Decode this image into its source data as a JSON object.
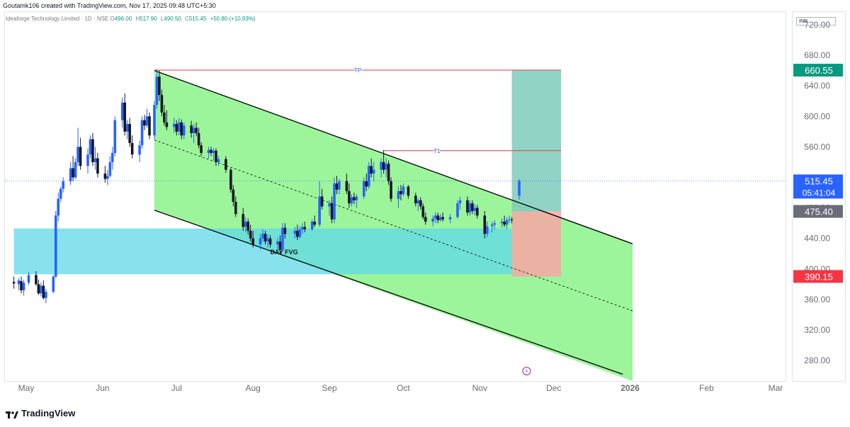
{
  "header": {
    "created_by": "Goutamk106 created with TradingView.com, Nov 17, 2025 09:48 UTC+5:30"
  },
  "symbol": {
    "name": "Ideaforge Technology Limited · 1D · NSE",
    "open_label": "O",
    "open": "496.00",
    "high_label": "H",
    "high": "517.90",
    "low_label": "L",
    "low": "490.50",
    "close_label": "C",
    "close": "515.45",
    "change": "+50.80 (+10.93%)"
  },
  "currency": "INR",
  "footer": {
    "brand": "TradingView"
  },
  "colors": {
    "up": "#2962ff",
    "down": "#131722",
    "channel_fill": "#9df59b",
    "fvg_fill": "#5fd8e8",
    "target_fill": "#7ecbbb",
    "stop_fill": "#f9a6a6",
    "tp_line": "#f23645",
    "price_badge": "#2962ff",
    "target_badge": "#089981",
    "stop_badge": "#f23645",
    "entry_badge": "#6a6d78"
  },
  "chart_data": {
    "type": "candlestick",
    "y_axis": {
      "min": 260,
      "max": 740,
      "ticks": [
        280,
        320,
        360,
        400,
        440,
        480,
        560,
        600,
        640,
        680,
        720
      ]
    },
    "x_axis": {
      "labels": [
        "May",
        "Jun",
        "Jul",
        "Aug",
        "Sep",
        "Oct",
        "Nov",
        "Dec",
        "2026",
        "Feb",
        "Mar"
      ],
      "label_dates": [
        "2025-05-01",
        "2025-06-01",
        "2025-07-01",
        "2025-08-01",
        "2025-09-01",
        "2025-10-01",
        "2025-11-01",
        "2025-12-01",
        "2026-01-01",
        "2026-02-01",
        "2026-03-01"
      ]
    },
    "price_labels": [
      {
        "text": "660.55",
        "value": 660.55,
        "role": "target"
      },
      {
        "text": "515.45",
        "value": 515.45,
        "role": "last",
        "sub": "05:41:04"
      },
      {
        "text": "475.40",
        "value": 475.4,
        "role": "entry"
      },
      {
        "text": "390.15",
        "value": 390.15,
        "role": "stop"
      }
    ],
    "last_price": 515.45,
    "horizontal_lines": [
      {
        "label": "TP",
        "value": 660.55,
        "from": "2025-06-22",
        "to": "2025-12-04"
      },
      {
        "label": "T1",
        "value": 555,
        "from": "2025-09-23",
        "to": "2025-12-04"
      }
    ],
    "zones": [
      {
        "label": "DAY FVG",
        "from": "2025-04-26",
        "to": "2025-11-14",
        "top": 453,
        "bottom": 393
      },
      {
        "label": "",
        "kind": "target",
        "from": "2025-11-14",
        "to": "2025-12-04",
        "top": 660.55,
        "bottom": 475.4
      },
      {
        "label": "",
        "kind": "stop",
        "from": "2025-11-14",
        "to": "2025-12-04",
        "top": 475.4,
        "bottom": 390.15
      }
    ],
    "channel": {
      "upper": [
        {
          "date": "2025-06-22",
          "value": 660
        },
        {
          "date": "2026-01-02",
          "value": 433
        }
      ],
      "lower": [
        {
          "date": "2025-06-22",
          "value": 477
        },
        {
          "date": "2025-12-29",
          "value": 262
        }
      ],
      "mid": [
        {
          "date": "2025-06-22",
          "value": 569
        },
        {
          "date": "2026-01-02",
          "value": 345
        }
      ],
      "fill_to": "2026-01-02"
    },
    "candles": [
      {
        "d": "2025-04-26",
        "o": 383,
        "h": 390,
        "l": 374,
        "c": 381
      },
      {
        "d": "2025-04-28",
        "o": 380,
        "h": 388,
        "l": 372,
        "c": 385
      },
      {
        "d": "2025-04-29",
        "o": 384,
        "h": 390,
        "l": 368,
        "c": 372
      },
      {
        "d": "2025-04-30",
        "o": 372,
        "h": 386,
        "l": 365,
        "c": 382
      },
      {
        "d": "2025-05-02",
        "o": 382,
        "h": 396,
        "l": 379,
        "c": 392
      },
      {
        "d": "2025-05-05",
        "o": 392,
        "h": 397,
        "l": 378,
        "c": 380
      },
      {
        "d": "2025-05-06",
        "o": 380,
        "h": 386,
        "l": 366,
        "c": 368
      },
      {
        "d": "2025-05-07",
        "o": 368,
        "h": 382,
        "l": 364,
        "c": 378
      },
      {
        "d": "2025-05-08",
        "o": 378,
        "h": 385,
        "l": 360,
        "c": 362
      },
      {
        "d": "2025-05-09",
        "o": 362,
        "h": 374,
        "l": 355,
        "c": 370
      },
      {
        "d": "2025-05-12",
        "o": 370,
        "h": 392,
        "l": 368,
        "c": 390
      },
      {
        "d": "2025-05-13",
        "o": 390,
        "h": 476,
        "l": 388,
        "c": 470
      },
      {
        "d": "2025-05-14",
        "o": 470,
        "h": 500,
        "l": 462,
        "c": 492
      },
      {
        "d": "2025-05-15",
        "o": 492,
        "h": 508,
        "l": 488,
        "c": 505
      },
      {
        "d": "2025-05-16",
        "o": 505,
        "h": 520,
        "l": 500,
        "c": 515
      },
      {
        "d": "2025-05-19",
        "o": 515,
        "h": 540,
        "l": 510,
        "c": 532
      },
      {
        "d": "2025-05-20",
        "o": 532,
        "h": 548,
        "l": 515,
        "c": 520
      },
      {
        "d": "2025-05-21",
        "o": 520,
        "h": 545,
        "l": 518,
        "c": 540
      },
      {
        "d": "2025-05-22",
        "o": 540,
        "h": 585,
        "l": 535,
        "c": 560
      },
      {
        "d": "2025-05-23",
        "o": 560,
        "h": 572,
        "l": 530,
        "c": 535
      },
      {
        "d": "2025-05-26",
        "o": 535,
        "h": 558,
        "l": 525,
        "c": 550
      },
      {
        "d": "2025-05-27",
        "o": 550,
        "h": 575,
        "l": 545,
        "c": 570
      },
      {
        "d": "2025-05-28",
        "o": 570,
        "h": 578,
        "l": 535,
        "c": 540
      },
      {
        "d": "2025-05-29",
        "o": 540,
        "h": 560,
        "l": 530,
        "c": 545
      },
      {
        "d": "2025-05-30",
        "o": 545,
        "h": 552,
        "l": 520,
        "c": 525
      },
      {
        "d": "2025-06-02",
        "o": 525,
        "h": 535,
        "l": 513,
        "c": 518
      },
      {
        "d": "2025-06-03",
        "o": 518,
        "h": 530,
        "l": 510,
        "c": 522
      },
      {
        "d": "2025-06-04",
        "o": 522,
        "h": 548,
        "l": 520,
        "c": 540
      },
      {
        "d": "2025-06-05",
        "o": 540,
        "h": 560,
        "l": 530,
        "c": 552
      },
      {
        "d": "2025-06-06",
        "o": 552,
        "h": 600,
        "l": 548,
        "c": 595
      },
      {
        "d": "2025-06-09",
        "o": 595,
        "h": 625,
        "l": 585,
        "c": 618
      },
      {
        "d": "2025-06-10",
        "o": 618,
        "h": 630,
        "l": 575,
        "c": 580
      },
      {
        "d": "2025-06-11",
        "o": 580,
        "h": 595,
        "l": 570,
        "c": 590
      },
      {
        "d": "2025-06-12",
        "o": 590,
        "h": 598,
        "l": 560,
        "c": 565
      },
      {
        "d": "2025-06-13",
        "o": 565,
        "h": 575,
        "l": 545,
        "c": 550
      },
      {
        "d": "2025-06-16",
        "o": 550,
        "h": 568,
        "l": 540,
        "c": 562
      },
      {
        "d": "2025-06-17",
        "o": 562,
        "h": 600,
        "l": 558,
        "c": 595
      },
      {
        "d": "2025-06-18",
        "o": 595,
        "h": 602,
        "l": 582,
        "c": 588
      },
      {
        "d": "2025-06-19",
        "o": 588,
        "h": 610,
        "l": 585,
        "c": 600
      },
      {
        "d": "2025-06-20",
        "o": 600,
        "h": 605,
        "l": 570,
        "c": 575
      },
      {
        "d": "2025-06-22",
        "o": 575,
        "h": 620,
        "l": 570,
        "c": 615
      },
      {
        "d": "2025-06-23",
        "o": 615,
        "h": 662,
        "l": 610,
        "c": 652
      },
      {
        "d": "2025-06-24",
        "o": 652,
        "h": 660,
        "l": 620,
        "c": 628
      },
      {
        "d": "2025-06-25",
        "o": 628,
        "h": 635,
        "l": 600,
        "c": 605
      },
      {
        "d": "2025-06-26",
        "o": 605,
        "h": 615,
        "l": 588,
        "c": 592
      },
      {
        "d": "2025-06-27",
        "o": 592,
        "h": 608,
        "l": 582,
        "c": 586
      },
      {
        "d": "2025-06-30",
        "o": 586,
        "h": 598,
        "l": 578,
        "c": 590
      },
      {
        "d": "2025-07-01",
        "o": 590,
        "h": 595,
        "l": 575,
        "c": 580
      },
      {
        "d": "2025-07-02",
        "o": 580,
        "h": 598,
        "l": 575,
        "c": 592
      },
      {
        "d": "2025-07-03",
        "o": 592,
        "h": 596,
        "l": 570,
        "c": 575
      },
      {
        "d": "2025-07-04",
        "o": 575,
        "h": 592,
        "l": 570,
        "c": 588
      },
      {
        "d": "2025-07-07",
        "o": 588,
        "h": 594,
        "l": 572,
        "c": 578
      },
      {
        "d": "2025-07-08",
        "o": 578,
        "h": 590,
        "l": 565,
        "c": 585
      },
      {
        "d": "2025-07-09",
        "o": 585,
        "h": 592,
        "l": 574,
        "c": 578
      },
      {
        "d": "2025-07-10",
        "o": 578,
        "h": 585,
        "l": 558,
        "c": 562
      },
      {
        "d": "2025-07-11",
        "o": 562,
        "h": 566,
        "l": 548,
        "c": 552
      },
      {
        "d": "2025-07-14",
        "o": 552,
        "h": 560,
        "l": 545,
        "c": 556
      },
      {
        "d": "2025-07-15",
        "o": 556,
        "h": 560,
        "l": 548,
        "c": 552
      },
      {
        "d": "2025-07-16",
        "o": 552,
        "h": 558,
        "l": 542,
        "c": 555
      },
      {
        "d": "2025-07-17",
        "o": 555,
        "h": 558,
        "l": 535,
        "c": 540
      },
      {
        "d": "2025-07-18",
        "o": 540,
        "h": 548,
        "l": 535,
        "c": 544
      },
      {
        "d": "2025-07-21",
        "o": 544,
        "h": 548,
        "l": 526,
        "c": 530
      },
      {
        "d": "2025-07-23",
        "o": 530,
        "h": 532,
        "l": 500,
        "c": 504
      },
      {
        "d": "2025-07-24",
        "o": 504,
        "h": 510,
        "l": 482,
        "c": 488
      },
      {
        "d": "2025-07-25",
        "o": 488,
        "h": 495,
        "l": 468,
        "c": 472
      },
      {
        "d": "2025-07-28",
        "o": 472,
        "h": 480,
        "l": 450,
        "c": 455
      },
      {
        "d": "2025-07-29",
        "o": 455,
        "h": 468,
        "l": 448,
        "c": 462
      },
      {
        "d": "2025-07-30",
        "o": 462,
        "h": 466,
        "l": 445,
        "c": 450
      },
      {
        "d": "2025-07-31",
        "o": 450,
        "h": 458,
        "l": 436,
        "c": 440
      },
      {
        "d": "2025-08-01",
        "o": 440,
        "h": 450,
        "l": 428,
        "c": 432
      },
      {
        "d": "2025-08-04",
        "o": 432,
        "h": 446,
        "l": 425,
        "c": 440
      },
      {
        "d": "2025-08-05",
        "o": 440,
        "h": 452,
        "l": 436,
        "c": 446
      },
      {
        "d": "2025-08-06",
        "o": 446,
        "h": 450,
        "l": 432,
        "c": 436
      },
      {
        "d": "2025-08-07",
        "o": 436,
        "h": 445,
        "l": 428,
        "c": 440
      },
      {
        "d": "2025-08-08",
        "o": 440,
        "h": 444,
        "l": 428,
        "c": 432
      },
      {
        "d": "2025-08-11",
        "o": 432,
        "h": 440,
        "l": 425,
        "c": 436
      },
      {
        "d": "2025-08-12",
        "o": 436,
        "h": 444,
        "l": 420,
        "c": 425
      },
      {
        "d": "2025-08-13",
        "o": 425,
        "h": 460,
        "l": 422,
        "c": 454
      },
      {
        "d": "2025-08-14",
        "o": 454,
        "h": 460,
        "l": 440,
        "c": 446
      },
      {
        "d": "2025-08-18",
        "o": 446,
        "h": 455,
        "l": 440,
        "c": 450
      },
      {
        "d": "2025-08-19",
        "o": 450,
        "h": 458,
        "l": 438,
        "c": 442
      },
      {
        "d": "2025-08-20",
        "o": 442,
        "h": 456,
        "l": 440,
        "c": 452
      },
      {
        "d": "2025-08-21",
        "o": 452,
        "h": 460,
        "l": 446,
        "c": 455
      },
      {
        "d": "2025-08-22",
        "o": 455,
        "h": 462,
        "l": 448,
        "c": 452
      },
      {
        "d": "2025-08-25",
        "o": 452,
        "h": 465,
        "l": 450,
        "c": 462
      },
      {
        "d": "2025-08-26",
        "o": 462,
        "h": 470,
        "l": 455,
        "c": 458
      },
      {
        "d": "2025-08-28",
        "o": 458,
        "h": 515,
        "l": 455,
        "c": 495
      },
      {
        "d": "2025-08-29",
        "o": 495,
        "h": 505,
        "l": 478,
        "c": 482
      },
      {
        "d": "2025-09-01",
        "o": 482,
        "h": 490,
        "l": 470,
        "c": 486
      },
      {
        "d": "2025-09-02",
        "o": 486,
        "h": 495,
        "l": 460,
        "c": 465
      },
      {
        "d": "2025-09-03",
        "o": 465,
        "h": 520,
        "l": 460,
        "c": 512
      },
      {
        "d": "2025-09-04",
        "o": 512,
        "h": 522,
        "l": 498,
        "c": 504
      },
      {
        "d": "2025-09-05",
        "o": 504,
        "h": 518,
        "l": 498,
        "c": 515
      },
      {
        "d": "2025-09-08",
        "o": 515,
        "h": 525,
        "l": 498,
        "c": 502
      },
      {
        "d": "2025-09-09",
        "o": 502,
        "h": 512,
        "l": 480,
        "c": 486
      },
      {
        "d": "2025-09-10",
        "o": 486,
        "h": 498,
        "l": 482,
        "c": 494
      },
      {
        "d": "2025-09-11",
        "o": 494,
        "h": 500,
        "l": 485,
        "c": 490
      },
      {
        "d": "2025-09-12",
        "o": 490,
        "h": 498,
        "l": 480,
        "c": 495
      },
      {
        "d": "2025-09-15",
        "o": 495,
        "h": 520,
        "l": 492,
        "c": 515
      },
      {
        "d": "2025-09-16",
        "o": 515,
        "h": 525,
        "l": 502,
        "c": 508
      },
      {
        "d": "2025-09-17",
        "o": 508,
        "h": 540,
        "l": 505,
        "c": 535
      },
      {
        "d": "2025-09-18",
        "o": 535,
        "h": 545,
        "l": 520,
        "c": 525
      },
      {
        "d": "2025-09-19",
        "o": 525,
        "h": 540,
        "l": 515,
        "c": 530
      },
      {
        "d": "2025-09-22",
        "o": 530,
        "h": 545,
        "l": 520,
        "c": 540
      },
      {
        "d": "2025-09-23",
        "o": 540,
        "h": 556,
        "l": 525,
        "c": 530
      },
      {
        "d": "2025-09-24",
        "o": 530,
        "h": 545,
        "l": 520,
        "c": 538
      },
      {
        "d": "2025-09-25",
        "o": 538,
        "h": 542,
        "l": 510,
        "c": 515
      },
      {
        "d": "2025-09-26",
        "o": 515,
        "h": 520,
        "l": 488,
        "c": 492
      },
      {
        "d": "2025-09-29",
        "o": 492,
        "h": 508,
        "l": 480,
        "c": 502
      },
      {
        "d": "2025-09-30",
        "o": 502,
        "h": 510,
        "l": 490,
        "c": 498
      },
      {
        "d": "2025-10-01",
        "o": 498,
        "h": 512,
        "l": 495,
        "c": 508
      },
      {
        "d": "2025-10-03",
        "o": 508,
        "h": 510,
        "l": 492,
        "c": 496
      },
      {
        "d": "2025-10-06",
        "o": 496,
        "h": 500,
        "l": 482,
        "c": 486
      },
      {
        "d": "2025-10-07",
        "o": 486,
        "h": 492,
        "l": 476,
        "c": 490
      },
      {
        "d": "2025-10-08",
        "o": 490,
        "h": 494,
        "l": 478,
        "c": 482
      },
      {
        "d": "2025-10-09",
        "o": 482,
        "h": 486,
        "l": 465,
        "c": 468
      },
      {
        "d": "2025-10-10",
        "o": 468,
        "h": 474,
        "l": 458,
        "c": 462
      },
      {
        "d": "2025-10-13",
        "o": 462,
        "h": 470,
        "l": 456,
        "c": 466
      },
      {
        "d": "2025-10-14",
        "o": 466,
        "h": 474,
        "l": 460,
        "c": 470
      },
      {
        "d": "2025-10-15",
        "o": 470,
        "h": 474,
        "l": 460,
        "c": 464
      },
      {
        "d": "2025-10-16",
        "o": 464,
        "h": 472,
        "l": 462,
        "c": 468
      },
      {
        "d": "2025-10-17",
        "o": 468,
        "h": 474,
        "l": 462,
        "c": 465
      },
      {
        "d": "2025-10-20",
        "o": 465,
        "h": 472,
        "l": 460,
        "c": 468
      },
      {
        "d": "2025-10-23",
        "o": 468,
        "h": 490,
        "l": 466,
        "c": 486
      },
      {
        "d": "2025-10-24",
        "o": 486,
        "h": 495,
        "l": 478,
        "c": 490
      },
      {
        "d": "2025-10-27",
        "o": 490,
        "h": 495,
        "l": 470,
        "c": 474
      },
      {
        "d": "2025-10-28",
        "o": 474,
        "h": 490,
        "l": 470,
        "c": 486
      },
      {
        "d": "2025-10-29",
        "o": 486,
        "h": 490,
        "l": 472,
        "c": 476
      },
      {
        "d": "2025-10-30",
        "o": 476,
        "h": 485,
        "l": 470,
        "c": 480
      },
      {
        "d": "2025-10-31",
        "o": 480,
        "h": 484,
        "l": 466,
        "c": 470
      },
      {
        "d": "2025-11-03",
        "o": 470,
        "h": 476,
        "l": 440,
        "c": 446
      },
      {
        "d": "2025-11-04",
        "o": 446,
        "h": 462,
        "l": 442,
        "c": 456
      },
      {
        "d": "2025-11-06",
        "o": 456,
        "h": 462,
        "l": 448,
        "c": 458
      },
      {
        "d": "2025-11-07",
        "o": 458,
        "h": 464,
        "l": 452,
        "c": 460
      },
      {
        "d": "2025-11-10",
        "o": 460,
        "h": 466,
        "l": 454,
        "c": 462
      },
      {
        "d": "2025-11-11",
        "o": 462,
        "h": 470,
        "l": 455,
        "c": 458
      },
      {
        "d": "2025-11-12",
        "o": 458,
        "h": 468,
        "l": 452,
        "c": 464
      },
      {
        "d": "2025-11-13",
        "o": 464,
        "h": 470,
        "l": 460,
        "c": 465
      },
      {
        "d": "2025-11-14",
        "o": 465,
        "h": 468,
        "l": 460,
        "c": 464
      },
      {
        "d": "2025-11-17",
        "o": 496,
        "h": 517.9,
        "l": 490.5,
        "c": 515.45
      }
    ]
  }
}
